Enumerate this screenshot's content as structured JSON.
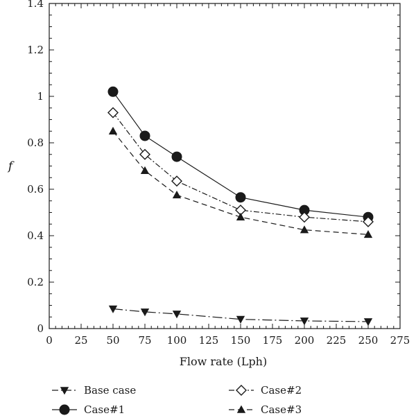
{
  "chart_data": {
    "type": "line",
    "title": "",
    "xlabel": "Flow rate (Lph)",
    "ylabel": "f",
    "xlim": [
      0,
      275
    ],
    "ylim": [
      0,
      1.4
    ],
    "x_ticks": [
      0,
      25,
      50,
      75,
      100,
      125,
      150,
      175,
      200,
      225,
      250,
      275
    ],
    "x_tick_labels": [
      "0",
      "25",
      "50",
      "75",
      "100",
      "125",
      "150",
      "175",
      "200",
      "225",
      "250",
      "275"
    ],
    "y_ticks": [
      0,
      0.2,
      0.4,
      0.6,
      0.8,
      1.0,
      1.2,
      1.4
    ],
    "y_tick_labels": [
      "0",
      "0.2",
      "0.4",
      "0.6",
      "0.8",
      "1",
      "1.2",
      "1.4"
    ],
    "grid": false,
    "legend_position": "bottom, below axes",
    "series": [
      {
        "name": "Base case",
        "marker": "triangle-down",
        "line_style": "long-dash-dot",
        "color": "#1a1a1a",
        "x": [
          50,
          75,
          100,
          150,
          200,
          250
        ],
        "y": [
          0.085,
          0.072,
          0.063,
          0.04,
          0.033,
          0.03
        ]
      },
      {
        "name": "Case#1",
        "marker": "filled-circle",
        "line_style": "solid",
        "color": "#1a1a1a",
        "x": [
          50,
          75,
          100,
          150,
          200,
          250
        ],
        "y": [
          1.02,
          0.83,
          0.74,
          0.565,
          0.51,
          0.48
        ]
      },
      {
        "name": "Case#2",
        "marker": "open-diamond",
        "line_style": "dash-dot",
        "color": "#1a1a1a",
        "x": [
          50,
          75,
          100,
          150,
          200,
          250
        ],
        "y": [
          0.93,
          0.75,
          0.635,
          0.51,
          0.48,
          0.46
        ]
      },
      {
        "name": "Case#3",
        "marker": "triangle-up",
        "line_style": "dashed",
        "color": "#1a1a1a",
        "x": [
          50,
          75,
          100,
          150,
          200,
          250
        ],
        "y": [
          0.85,
          0.68,
          0.575,
          0.48,
          0.425,
          0.405
        ]
      }
    ]
  }
}
